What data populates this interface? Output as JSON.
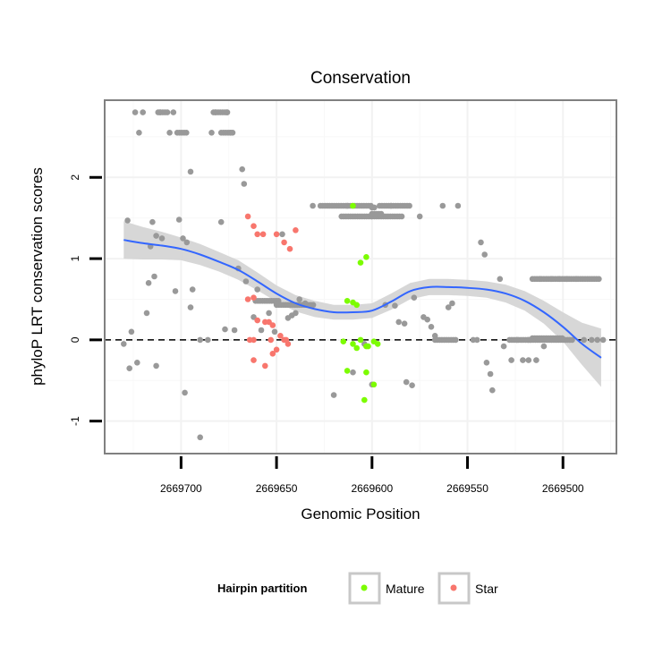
{
  "chart_data": {
    "type": "scatter",
    "title": "Conservation",
    "xlabel": "Genomic Position",
    "ylabel": "phyloP LRT conservation scores",
    "xlim": [
      2669740,
      2669472
    ],
    "ylim": [
      -1.4,
      2.95
    ],
    "x_reversed": true,
    "x_ticks": [
      2669700,
      2669650,
      2669600,
      2669550,
      2669500
    ],
    "y_ticks": [
      -1,
      0,
      1,
      2
    ],
    "grid": true,
    "reference_line": {
      "y": 0,
      "style": "dashed"
    },
    "legend": {
      "title": "Hairpin partition",
      "position": "bottom",
      "entries": [
        {
          "label": "Mature",
          "color": "#7CFC00"
        },
        {
          "label": "Star",
          "color": "#F8766D"
        }
      ]
    },
    "colors": {
      "other": "#999999",
      "Mature": "#7CFC00",
      "Star": "#F8766D",
      "smooth": "#3366FF",
      "ribbon": "#D3D3D3",
      "panel_border": "#808080",
      "grid": "#F2F2F2"
    },
    "series": [
      {
        "name": "Other",
        "points": [
          [
            2669728,
            1.47
          ],
          [
            2669730,
            -0.05
          ],
          [
            2669726,
            0.1
          ],
          [
            2669727,
            -0.35
          ],
          [
            2669723,
            -0.28
          ],
          [
            2669724,
            2.8
          ],
          [
            2669720,
            2.8
          ],
          [
            2669722,
            2.55
          ],
          [
            2669718,
            0.33
          ],
          [
            2669717,
            0.7
          ],
          [
            2669716,
            1.15
          ],
          [
            2669714,
            0.78
          ],
          [
            2669715,
            1.45
          ],
          [
            2669713,
            -0.32
          ],
          [
            2669711,
            2.8
          ],
          [
            2669713,
            1.28
          ],
          [
            2669710,
            1.25
          ],
          [
            2669706,
            2.55
          ],
          [
            2669704,
            2.8
          ],
          [
            2669703,
            0.6
          ],
          [
            2669701,
            1.48
          ],
          [
            2669699,
            1.25
          ],
          [
            2669697,
            1.2
          ],
          [
            2669695,
            2.07
          ],
          [
            2669695,
            0.4
          ],
          [
            2669698,
            -0.65
          ],
          [
            2669694,
            0.62
          ],
          [
            2669690,
            0.0
          ],
          [
            2669690,
            -1.2
          ],
          [
            2669686,
            0.0
          ],
          [
            2669684,
            2.55
          ],
          [
            2669682,
            2.8
          ],
          [
            2669679,
            1.45
          ],
          [
            2669677,
            0.13
          ],
          [
            2669676,
            2.8
          ],
          [
            2669674,
            2.55
          ],
          [
            2669672,
            0.12
          ],
          [
            2669670,
            0.88
          ],
          [
            2669668,
            2.1
          ],
          [
            2669667,
            1.92
          ],
          [
            2669666,
            0.72
          ],
          [
            2669662,
            0.28
          ],
          [
            2669660,
            0.62
          ],
          [
            2669658,
            0.12
          ],
          [
            2669654,
            0.33
          ],
          [
            2669651,
            0.1
          ],
          [
            2669647,
            1.3
          ],
          [
            2669644,
            0.27
          ],
          [
            2669642,
            0.3
          ],
          [
            2669640,
            0.33
          ],
          [
            2669638,
            0.5
          ],
          [
            2669635,
            0.45
          ],
          [
            2669631,
            1.65
          ],
          [
            2669620,
            -0.68
          ],
          [
            2669613,
            1.65
          ],
          [
            2669610,
            -0.4
          ],
          [
            2669604,
            -0.05
          ],
          [
            2669600,
            -0.55
          ],
          [
            2669593,
            0.43
          ],
          [
            2669590,
            1.65
          ],
          [
            2669588,
            0.42
          ],
          [
            2669586,
            0.22
          ],
          [
            2669583,
            0.2
          ],
          [
            2669582,
            -0.52
          ],
          [
            2669579,
            -0.56
          ],
          [
            2669578,
            0.52
          ],
          [
            2669575,
            1.52
          ],
          [
            2669573,
            0.28
          ],
          [
            2669571,
            0.25
          ],
          [
            2669569,
            0.16
          ],
          [
            2669567,
            0.05
          ],
          [
            2669563,
            1.65
          ],
          [
            2669560,
            0.4
          ],
          [
            2669558,
            0.45
          ],
          [
            2669555,
            1.65
          ],
          [
            2669547,
            0.0
          ],
          [
            2669545,
            0.0
          ],
          [
            2669543,
            1.2
          ],
          [
            2669541,
            1.05
          ],
          [
            2669540,
            -0.28
          ],
          [
            2669538,
            -0.42
          ],
          [
            2669537,
            -0.62
          ],
          [
            2669533,
            0.75
          ],
          [
            2669531,
            -0.08
          ],
          [
            2669527,
            -0.25
          ],
          [
            2669524,
            0.0
          ],
          [
            2669521,
            -0.25
          ],
          [
            2669518,
            -0.25
          ],
          [
            2669514,
            -0.25
          ],
          [
            2669512,
            0.75
          ],
          [
            2669510,
            -0.08
          ],
          [
            2669506,
            0.75
          ],
          [
            2669502,
            0.75
          ],
          [
            2669498,
            0.75
          ],
          [
            2669493,
            0.75
          ],
          [
            2669489,
            0.0
          ],
          [
            2669485,
            0.0
          ],
          [
            2669482,
            0.0
          ],
          [
            2669479,
            0.0
          ]
        ],
        "runs": [
          [
            2669712,
            2669707,
            2.8
          ],
          [
            2669702,
            2669697,
            2.55
          ],
          [
            2669683,
            2669675,
            2.8
          ],
          [
            2669679,
            2669672,
            2.55
          ],
          [
            2669627,
            2669600,
            1.65
          ],
          [
            2669600,
            2669598,
            1.63
          ],
          [
            2669616,
            2669600,
            1.52
          ],
          [
            2669596,
            2669580,
            1.65
          ],
          [
            2669600,
            2669584,
            1.52
          ],
          [
            2669600,
            2669594,
            1.55
          ],
          [
            2669661,
            2669648,
            0.48
          ],
          [
            2669650,
            2669630,
            0.43
          ],
          [
            2669567,
            2669556,
            0.0
          ],
          [
            2669528,
            2669516,
            0.0
          ],
          [
            2669516,
            2669480,
            0.75
          ],
          [
            2669518,
            2669495,
            0.0
          ],
          [
            2669516,
            2669500,
            0.02
          ]
        ]
      },
      {
        "name": "Mature",
        "points": [
          [
            2669610,
            1.65
          ],
          [
            2669606,
            0.95
          ],
          [
            2669603,
            1.02
          ],
          [
            2669613,
            0.48
          ],
          [
            2669610,
            0.46
          ],
          [
            2669608,
            0.43
          ],
          [
            2669615,
            -0.02
          ],
          [
            2669610,
            -0.05
          ],
          [
            2669608,
            -0.1
          ],
          [
            2669606,
            0.0
          ],
          [
            2669603,
            -0.08
          ],
          [
            2669602,
            -0.08
          ],
          [
            2669599,
            -0.02
          ],
          [
            2669597,
            -0.05
          ],
          [
            2669604,
            -0.74
          ],
          [
            2669603,
            -0.4
          ],
          [
            2669613,
            -0.38
          ],
          [
            2669599,
            -0.55
          ]
        ]
      },
      {
        "name": "Star",
        "points": [
          [
            2669665,
            1.52
          ],
          [
            2669662,
            1.4
          ],
          [
            2669660,
            1.3
          ],
          [
            2669657,
            1.3
          ],
          [
            2669650,
            1.3
          ],
          [
            2669646,
            1.2
          ],
          [
            2669643,
            1.12
          ],
          [
            2669640,
            1.35
          ],
          [
            2669665,
            0.5
          ],
          [
            2669662,
            0.52
          ],
          [
            2669660,
            0.24
          ],
          [
            2669656,
            0.22
          ],
          [
            2669654,
            0.22
          ],
          [
            2669652,
            0.18
          ],
          [
            2669648,
            0.05
          ],
          [
            2669646,
            0.0
          ],
          [
            2669644,
            -0.05
          ],
          [
            2669650,
            -0.12
          ],
          [
            2669652,
            -0.17
          ],
          [
            2669662,
            -0.25
          ],
          [
            2669656,
            -0.32
          ],
          [
            2669664,
            0.0
          ],
          [
            2669662,
            0.0
          ],
          [
            2669653,
            0.0
          ],
          [
            2669645,
            0.0
          ]
        ]
      }
    ],
    "smooth": {
      "x": [
        2669730,
        2669720,
        2669710,
        2669700,
        2669690,
        2669680,
        2669670,
        2669660,
        2669650,
        2669640,
        2669630,
        2669620,
        2669610,
        2669600,
        2669590,
        2669580,
        2669570,
        2669560,
        2669550,
        2669540,
        2669530,
        2669520,
        2669510,
        2669500,
        2669490,
        2669480
      ],
      "y": [
        1.23,
        1.19,
        1.16,
        1.12,
        1.05,
        0.96,
        0.86,
        0.72,
        0.57,
        0.45,
        0.38,
        0.34,
        0.34,
        0.36,
        0.47,
        0.6,
        0.65,
        0.65,
        0.64,
        0.62,
        0.57,
        0.48,
        0.34,
        0.16,
        -0.05,
        -0.22
      ],
      "se": [
        0.23,
        0.2,
        0.17,
        0.14,
        0.13,
        0.12,
        0.12,
        0.11,
        0.1,
        0.1,
        0.1,
        0.09,
        0.09,
        0.09,
        0.1,
        0.1,
        0.1,
        0.1,
        0.1,
        0.1,
        0.11,
        0.12,
        0.14,
        0.18,
        0.26,
        0.36
      ]
    }
  }
}
